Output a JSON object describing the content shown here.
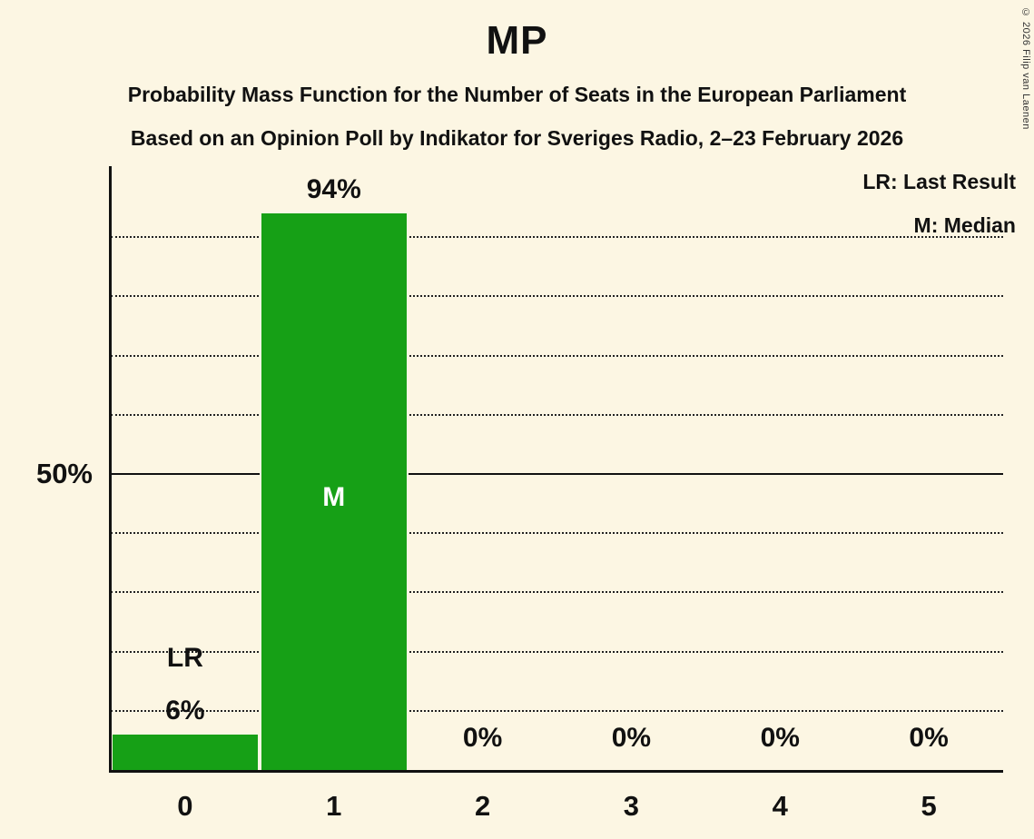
{
  "title": "MP",
  "subtitle1": "Probability Mass Function for the Number of Seats in the European Parliament",
  "subtitle2": "Based on an Opinion Poll by Indikator for Sveriges Radio, 2–23 February 2026",
  "legend": {
    "lr": "LR: Last Result",
    "m": "M: Median"
  },
  "y_axis": {
    "label_50": "50%"
  },
  "copyright": "© 2026 Filip van Laenen",
  "colors": {
    "background": "#FCF6E3",
    "bar": "#16A016",
    "text": "#111111"
  },
  "chart_data": {
    "type": "bar",
    "title": "MP",
    "categories": [
      "0",
      "1",
      "2",
      "3",
      "4",
      "5"
    ],
    "values": [
      6,
      94,
      0,
      0,
      0,
      0
    ],
    "bar_labels": [
      "6%",
      "94%",
      "0%",
      "0%",
      "0%",
      "0%"
    ],
    "annotations": [
      {
        "bar_index": 0,
        "text": "LR",
        "position": "above"
      },
      {
        "bar_index": 1,
        "text": "M",
        "position": "inside"
      }
    ],
    "xlabel": "",
    "ylabel": "",
    "ylim": [
      0,
      100
    ],
    "y_tick_labels": [
      "50%"
    ],
    "gridlines": {
      "dotted_every": 10,
      "solid_at": 50,
      "style": "dotted"
    },
    "legend_position": "top-right",
    "last_result_bar_index": 0,
    "median_bar_index": 1
  }
}
